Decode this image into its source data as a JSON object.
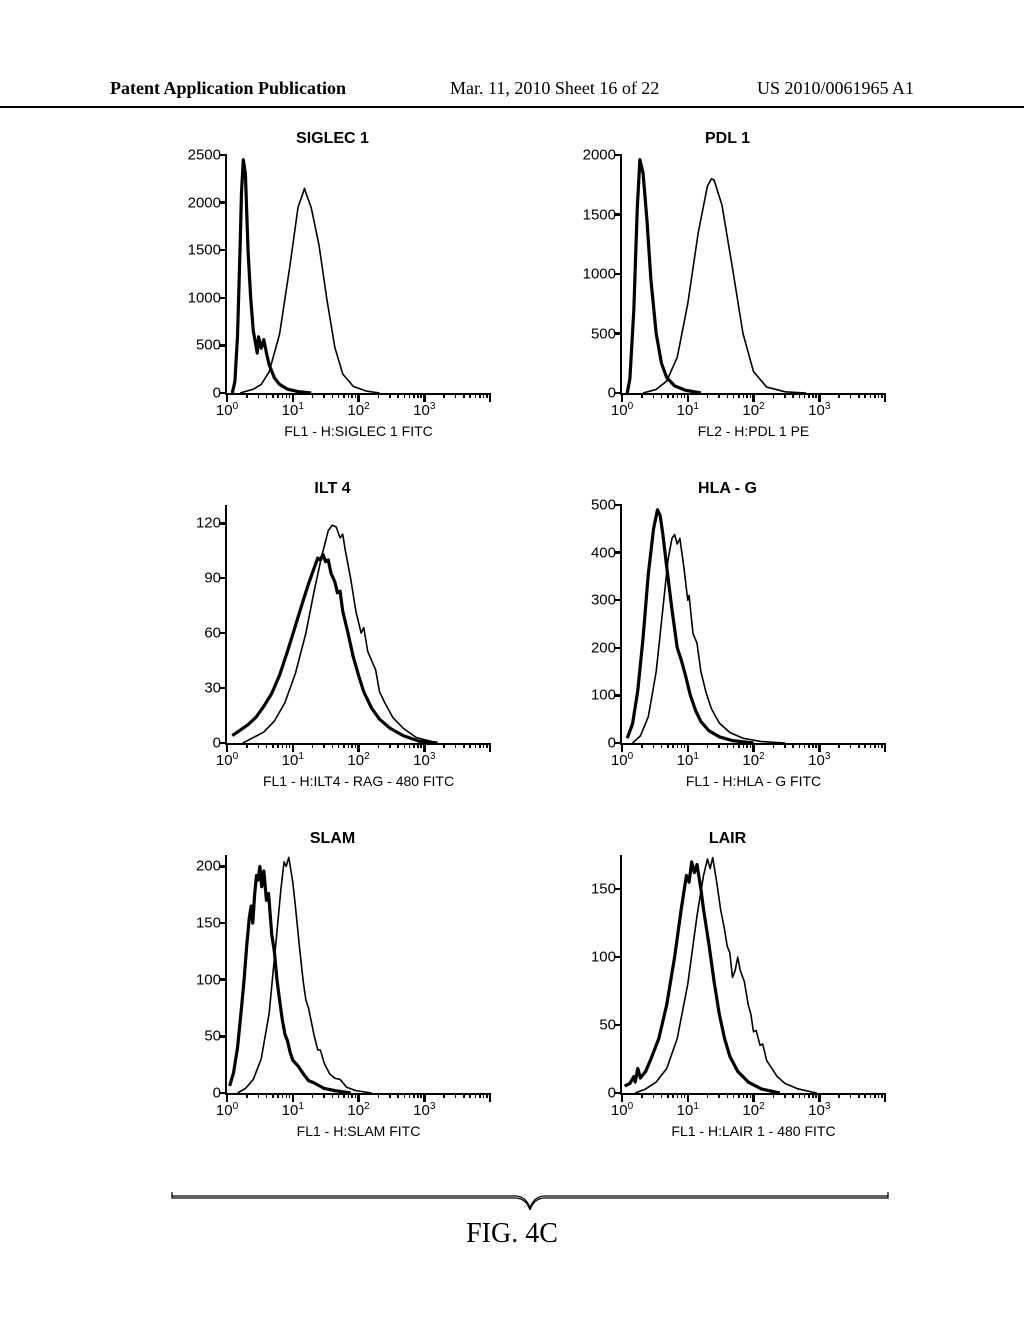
{
  "header": {
    "left": "Patent Application Publication",
    "mid": "Mar. 11, 2010  Sheet 16 of 22",
    "right": "US 2010/0061965 A1"
  },
  "figure_caption": "FIG. 4C",
  "axis_style": {
    "font_family": "Arial",
    "tick_fontsize": 15,
    "title_fontsize": 16,
    "xlabel_fontsize": 14,
    "line_color": "#000000",
    "curve_thick_width": 3.2,
    "curve_thin_width": 1.6,
    "background_color": "#ffffff"
  },
  "log_x": {
    "decades": [
      0,
      1,
      2,
      3,
      4
    ],
    "labels": [
      "10^0",
      "10^1",
      "10^2",
      "10^3"
    ],
    "minor_fracs": [
      0.301,
      0.477,
      0.602,
      0.699,
      0.778,
      0.845,
      0.903,
      0.954
    ]
  },
  "panels": [
    {
      "title": "SIGLEC 1",
      "xlabel": "FL1 - H:SIGLEC 1 FITC",
      "ymax": 2500,
      "ytick_step": 500,
      "curve_thick": [
        [
          0.02,
          0
        ],
        [
          0.03,
          120
        ],
        [
          0.04,
          600
        ],
        [
          0.05,
          1550
        ],
        [
          0.055,
          2100
        ],
        [
          0.062,
          2450
        ],
        [
          0.07,
          2300
        ],
        [
          0.08,
          1500
        ],
        [
          0.09,
          1000
        ],
        [
          0.1,
          650
        ],
        [
          0.11,
          500
        ],
        [
          0.115,
          420
        ],
        [
          0.12,
          590
        ],
        [
          0.13,
          470
        ],
        [
          0.14,
          560
        ],
        [
          0.15,
          420
        ],
        [
          0.16,
          300
        ],
        [
          0.18,
          160
        ],
        [
          0.2,
          90
        ],
        [
          0.23,
          40
        ],
        [
          0.27,
          15
        ],
        [
          0.32,
          0
        ]
      ],
      "curve_thin": [
        [
          0.05,
          0
        ],
        [
          0.1,
          40
        ],
        [
          0.13,
          90
        ],
        [
          0.16,
          220
        ],
        [
          0.2,
          620
        ],
        [
          0.24,
          1350
        ],
        [
          0.27,
          1950
        ],
        [
          0.295,
          2150
        ],
        [
          0.3,
          2100
        ],
        [
          0.32,
          1950
        ],
        [
          0.35,
          1550
        ],
        [
          0.38,
          980
        ],
        [
          0.41,
          480
        ],
        [
          0.44,
          200
        ],
        [
          0.48,
          70
        ],
        [
          0.53,
          20
        ],
        [
          0.58,
          0
        ]
      ]
    },
    {
      "title": "PDL 1",
      "xlabel": "FL2 - H:PDL 1 PE",
      "ymax": 2000,
      "ytick_step": 500,
      "curve_thick": [
        [
          0.02,
          0
        ],
        [
          0.03,
          120
        ],
        [
          0.045,
          700
        ],
        [
          0.058,
          1550
        ],
        [
          0.068,
          1960
        ],
        [
          0.08,
          1850
        ],
        [
          0.095,
          1450
        ],
        [
          0.11,
          950
        ],
        [
          0.13,
          500
        ],
        [
          0.15,
          250
        ],
        [
          0.17,
          130
        ],
        [
          0.2,
          60
        ],
        [
          0.24,
          25
        ],
        [
          0.3,
          0
        ]
      ],
      "curve_thin": [
        [
          0.08,
          0
        ],
        [
          0.13,
          30
        ],
        [
          0.17,
          100
        ],
        [
          0.21,
          300
        ],
        [
          0.25,
          750
        ],
        [
          0.29,
          1350
        ],
        [
          0.325,
          1740
        ],
        [
          0.34,
          1800
        ],
        [
          0.35,
          1790
        ],
        [
          0.38,
          1580
        ],
        [
          0.42,
          1050
        ],
        [
          0.46,
          500
        ],
        [
          0.5,
          180
        ],
        [
          0.55,
          50
        ],
        [
          0.62,
          10
        ],
        [
          0.7,
          0
        ]
      ]
    },
    {
      "title": "ILT 4",
      "xlabel": "FL1 - H:ILT4 - RAG - 480 FITC",
      "ymax": 130,
      "ytick_step": 30,
      "curve_thick": [
        [
          0.02,
          4
        ],
        [
          0.05,
          7
        ],
        [
          0.08,
          10
        ],
        [
          0.11,
          14
        ],
        [
          0.14,
          20
        ],
        [
          0.17,
          27
        ],
        [
          0.2,
          37
        ],
        [
          0.23,
          50
        ],
        [
          0.26,
          64
        ],
        [
          0.29,
          78
        ],
        [
          0.31,
          87
        ],
        [
          0.33,
          95
        ],
        [
          0.345,
          101
        ],
        [
          0.355,
          100
        ],
        [
          0.365,
          103
        ],
        [
          0.375,
          99
        ],
        [
          0.385,
          100
        ],
        [
          0.395,
          93
        ],
        [
          0.41,
          88
        ],
        [
          0.42,
          82
        ],
        [
          0.43,
          83
        ],
        [
          0.44,
          72
        ],
        [
          0.46,
          60
        ],
        [
          0.48,
          47
        ],
        [
          0.5,
          37
        ],
        [
          0.52,
          28
        ],
        [
          0.55,
          19
        ],
        [
          0.58,
          13
        ],
        [
          0.62,
          8
        ],
        [
          0.67,
          4
        ],
        [
          0.73,
          1
        ],
        [
          0.8,
          0
        ]
      ],
      "curve_thin": [
        [
          0.06,
          0
        ],
        [
          0.1,
          3
        ],
        [
          0.14,
          6
        ],
        [
          0.18,
          12
        ],
        [
          0.22,
          22
        ],
        [
          0.26,
          38
        ],
        [
          0.3,
          60
        ],
        [
          0.33,
          82
        ],
        [
          0.36,
          102
        ],
        [
          0.385,
          116
        ],
        [
          0.4,
          119
        ],
        [
          0.415,
          118
        ],
        [
          0.43,
          112
        ],
        [
          0.44,
          114
        ],
        [
          0.45,
          105
        ],
        [
          0.47,
          90
        ],
        [
          0.49,
          72
        ],
        [
          0.51,
          60
        ],
        [
          0.52,
          63
        ],
        [
          0.535,
          50
        ],
        [
          0.55,
          45
        ],
        [
          0.565,
          40
        ],
        [
          0.58,
          28
        ],
        [
          0.6,
          22
        ],
        [
          0.63,
          14
        ],
        [
          0.67,
          8
        ],
        [
          0.72,
          3
        ],
        [
          0.8,
          0
        ]
      ]
    },
    {
      "title": "HLA - G",
      "xlabel": "FL1 - H:HLA - G FITC",
      "ymax": 500,
      "ytick_step": 100,
      "curve_thick": [
        [
          0.02,
          10
        ],
        [
          0.04,
          40
        ],
        [
          0.06,
          110
        ],
        [
          0.08,
          220
        ],
        [
          0.1,
          355
        ],
        [
          0.12,
          450
        ],
        [
          0.135,
          490
        ],
        [
          0.145,
          478
        ],
        [
          0.155,
          440
        ],
        [
          0.17,
          370
        ],
        [
          0.19,
          280
        ],
        [
          0.21,
          200
        ],
        [
          0.225,
          175
        ],
        [
          0.24,
          145
        ],
        [
          0.26,
          100
        ],
        [
          0.28,
          68
        ],
        [
          0.3,
          45
        ],
        [
          0.33,
          26
        ],
        [
          0.37,
          13
        ],
        [
          0.42,
          5
        ],
        [
          0.5,
          0
        ]
      ],
      "curve_thin": [
        [
          0.04,
          0
        ],
        [
          0.07,
          15
        ],
        [
          0.1,
          55
        ],
        [
          0.13,
          150
        ],
        [
          0.155,
          280
        ],
        [
          0.175,
          385
        ],
        [
          0.19,
          430
        ],
        [
          0.2,
          438
        ],
        [
          0.21,
          418
        ],
        [
          0.22,
          430
        ],
        [
          0.235,
          370
        ],
        [
          0.25,
          300
        ],
        [
          0.255,
          310
        ],
        [
          0.27,
          230
        ],
        [
          0.285,
          210
        ],
        [
          0.3,
          150
        ],
        [
          0.32,
          105
        ],
        [
          0.34,
          72
        ],
        [
          0.37,
          42
        ],
        [
          0.41,
          22
        ],
        [
          0.46,
          10
        ],
        [
          0.53,
          3
        ],
        [
          0.62,
          0
        ]
      ]
    },
    {
      "title": "SLAM",
      "xlabel": "FL1 - H:SLAM FITC",
      "ymax": 210,
      "ytick_step": 50,
      "curve_thick": [
        [
          0.01,
          6
        ],
        [
          0.025,
          18
        ],
        [
          0.04,
          40
        ],
        [
          0.055,
          75
        ],
        [
          0.065,
          100
        ],
        [
          0.075,
          130
        ],
        [
          0.085,
          155
        ],
        [
          0.092,
          165
        ],
        [
          0.098,
          150
        ],
        [
          0.105,
          175
        ],
        [
          0.112,
          192
        ],
        [
          0.118,
          188
        ],
        [
          0.125,
          200
        ],
        [
          0.132,
          182
        ],
        [
          0.14,
          196
        ],
        [
          0.15,
          170
        ],
        [
          0.158,
          176
        ],
        [
          0.17,
          140
        ],
        [
          0.18,
          125
        ],
        [
          0.19,
          100
        ],
        [
          0.2,
          82
        ],
        [
          0.21,
          65
        ],
        [
          0.22,
          52
        ],
        [
          0.23,
          46
        ],
        [
          0.24,
          36
        ],
        [
          0.25,
          29
        ],
        [
          0.27,
          24
        ],
        [
          0.29,
          17
        ],
        [
          0.31,
          11
        ],
        [
          0.33,
          9
        ],
        [
          0.37,
          4
        ],
        [
          0.41,
          2
        ],
        [
          0.47,
          0
        ]
      ],
      "curve_thin": [
        [
          0.04,
          0
        ],
        [
          0.07,
          4
        ],
        [
          0.1,
          12
        ],
        [
          0.13,
          30
        ],
        [
          0.16,
          70
        ],
        [
          0.185,
          130
        ],
        [
          0.205,
          180
        ],
        [
          0.217,
          204
        ],
        [
          0.225,
          200
        ],
        [
          0.235,
          208
        ],
        [
          0.25,
          186
        ],
        [
          0.26,
          165
        ],
        [
          0.275,
          130
        ],
        [
          0.29,
          98
        ],
        [
          0.3,
          82
        ],
        [
          0.31,
          75
        ],
        [
          0.325,
          58
        ],
        [
          0.33,
          52
        ],
        [
          0.345,
          38
        ],
        [
          0.355,
          38
        ],
        [
          0.37,
          26
        ],
        [
          0.39,
          17
        ],
        [
          0.41,
          13
        ],
        [
          0.43,
          12
        ],
        [
          0.455,
          5
        ],
        [
          0.49,
          2
        ],
        [
          0.55,
          0
        ]
      ]
    },
    {
      "title": "LAIR",
      "xlabel": "FL1 - H:LAIR 1 - 480 FITC",
      "ymax": 175,
      "ytick_step": 50,
      "curve_thick": [
        [
          0.01,
          5
        ],
        [
          0.03,
          7
        ],
        [
          0.045,
          12
        ],
        [
          0.05,
          8
        ],
        [
          0.06,
          18
        ],
        [
          0.07,
          11
        ],
        [
          0.09,
          16
        ],
        [
          0.11,
          25
        ],
        [
          0.14,
          40
        ],
        [
          0.17,
          65
        ],
        [
          0.2,
          100
        ],
        [
          0.225,
          135
        ],
        [
          0.245,
          160
        ],
        [
          0.255,
          155
        ],
        [
          0.265,
          170
        ],
        [
          0.275,
          162
        ],
        [
          0.285,
          168
        ],
        [
          0.3,
          150
        ],
        [
          0.31,
          135
        ],
        [
          0.33,
          110
        ],
        [
          0.35,
          82
        ],
        [
          0.37,
          58
        ],
        [
          0.39,
          40
        ],
        [
          0.41,
          27
        ],
        [
          0.44,
          16
        ],
        [
          0.48,
          8
        ],
        [
          0.53,
          3
        ],
        [
          0.6,
          0
        ]
      ],
      "curve_thin": [
        [
          0.05,
          0
        ],
        [
          0.09,
          3
        ],
        [
          0.13,
          8
        ],
        [
          0.17,
          18
        ],
        [
          0.21,
          40
        ],
        [
          0.25,
          80
        ],
        [
          0.285,
          130
        ],
        [
          0.31,
          160
        ],
        [
          0.325,
          172
        ],
        [
          0.335,
          165
        ],
        [
          0.345,
          173
        ],
        [
          0.36,
          155
        ],
        [
          0.375,
          135
        ],
        [
          0.39,
          120
        ],
        [
          0.4,
          108
        ],
        [
          0.41,
          103
        ],
        [
          0.42,
          85
        ],
        [
          0.43,
          90
        ],
        [
          0.44,
          100
        ],
        [
          0.45,
          90
        ],
        [
          0.465,
          82
        ],
        [
          0.48,
          65
        ],
        [
          0.49,
          58
        ],
        [
          0.5,
          45
        ],
        [
          0.51,
          46
        ],
        [
          0.525,
          35
        ],
        [
          0.535,
          36
        ],
        [
          0.55,
          24
        ],
        [
          0.57,
          18
        ],
        [
          0.59,
          12
        ],
        [
          0.62,
          7
        ],
        [
          0.67,
          3
        ],
        [
          0.74,
          0
        ]
      ]
    }
  ]
}
